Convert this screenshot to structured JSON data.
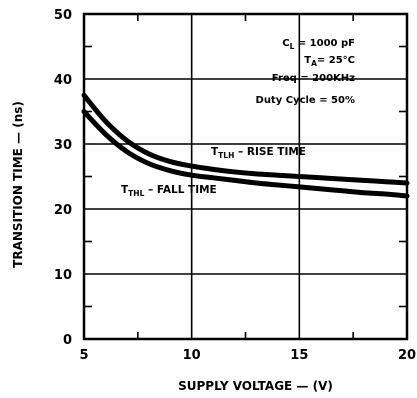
{
  "chart_data": {
    "type": "line",
    "xlabel": "SUPPLY VOLTAGE — (V)",
    "ylabel": "TRANSITION TIME — (ns)",
    "xlim": [
      5,
      20
    ],
    "ylim": [
      0,
      50
    ],
    "x_ticks": [
      "5",
      "10",
      "15",
      "20"
    ],
    "y_ticks": [
      "0",
      "10",
      "20",
      "30",
      "40",
      "50"
    ],
    "grid": true,
    "conditions": [
      {
        "main": "C",
        "sub": "L",
        "rest": " = 1000 pF"
      },
      {
        "main": "T",
        "sub": "A",
        "rest": "= 25°C"
      },
      {
        "main": "Freq = 200KHz",
        "sub": "",
        "rest": ""
      },
      {
        "main": "Duty Cycle = 50%",
        "sub": "",
        "rest": ""
      }
    ],
    "series": [
      {
        "label_main": "T",
        "label_sub": "TLH",
        "label_rest": " – RISE TIME",
        "color": "#000000",
        "x": [
          5,
          6,
          7,
          8,
          9,
          10,
          11,
          12,
          13,
          14,
          15,
          16,
          17,
          18,
          19,
          20
        ],
        "y": [
          37.5,
          33.5,
          30.5,
          28.5,
          27.3,
          26.6,
          26.1,
          25.7,
          25.4,
          25.2,
          25.0,
          24.8,
          24.6,
          24.4,
          24.2,
          24.0
        ]
      },
      {
        "label_main": "T",
        "label_sub": "THL",
        "label_rest": " – FALL TIME",
        "color": "#000000",
        "x": [
          5,
          6,
          7,
          8,
          9,
          10,
          11,
          12,
          13,
          14,
          15,
          16,
          17,
          18,
          19,
          20
        ],
        "y": [
          35.0,
          31.5,
          28.8,
          27.0,
          25.9,
          25.2,
          24.8,
          24.4,
          24.0,
          23.7,
          23.4,
          23.1,
          22.8,
          22.5,
          22.3,
          22.0
        ]
      }
    ]
  }
}
